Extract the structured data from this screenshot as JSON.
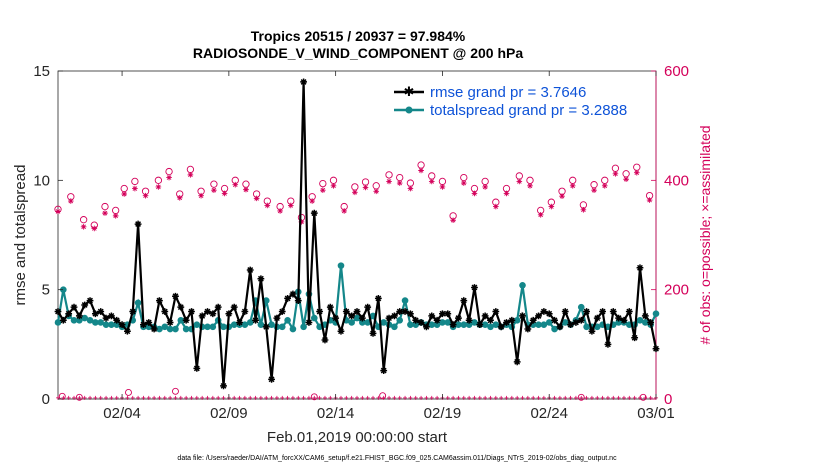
{
  "chart_data": {
    "type": "line",
    "title_line1": "Tropics 20515 / 20937 = 97.984%",
    "title_line2": "RADIOSONDE_V_WIND_COMPONENT @ 200 hPa",
    "ylabel": "rmse and totalspread",
    "y2label": "# of obs: o=possible; ×=assimilated",
    "xlabel": "Feb.01,2019 00:00:00 start",
    "footer": "data file: /Users/raeder/DAI/ATM_forcXX/CAM6_setup/f.e21.FHIST_BGC.f09_025.CAM6assim.011/Diags_NTrS_2019-02/obs_diag_output.nc",
    "xlim": [
      1,
      29
    ],
    "ylim": [
      0,
      15
    ],
    "y2lim": [
      0,
      600
    ],
    "xticks": [
      {
        "value": 4,
        "label": "02/04"
      },
      {
        "value": 9,
        "label": "02/09"
      },
      {
        "value": 14,
        "label": "02/14"
      },
      {
        "value": 19,
        "label": "02/19"
      },
      {
        "value": 24,
        "label": "02/24"
      },
      {
        "value": 29,
        "label": "03/01"
      }
    ],
    "yticks": [
      "0",
      "5",
      "10",
      "15"
    ],
    "y2ticks": [
      "0",
      "200",
      "400",
      "600"
    ],
    "legend": [
      "rmse grand pr = 3.7646",
      "totalspread grand pr = 3.2888"
    ],
    "colors": {
      "rmse": "#000000",
      "spread": "#14878a",
      "obs": "#d4005a",
      "legend_text": "#0e53d8"
    },
    "x": [
      1.0,
      1.25,
      1.5,
      1.75,
      2.0,
      2.25,
      2.5,
      2.75,
      3.0,
      3.25,
      3.5,
      3.75,
      4.0,
      4.25,
      4.5,
      4.75,
      5.0,
      5.25,
      5.5,
      5.75,
      6.0,
      6.25,
      6.5,
      6.75,
      7.0,
      7.25,
      7.5,
      7.75,
      8.0,
      8.25,
      8.5,
      8.75,
      9.0,
      9.25,
      9.5,
      9.75,
      10.0,
      10.25,
      10.5,
      10.75,
      11.0,
      11.25,
      11.5,
      11.75,
      12.0,
      12.25,
      12.5,
      12.75,
      13.0,
      13.25,
      13.5,
      13.75,
      14.0,
      14.25,
      14.5,
      14.75,
      15.0,
      15.25,
      15.5,
      15.75,
      16.0,
      16.25,
      16.5,
      16.75,
      17.0,
      17.25,
      17.5,
      17.75,
      18.0,
      18.25,
      18.5,
      18.75,
      19.0,
      19.25,
      19.5,
      19.75,
      20.0,
      20.25,
      20.5,
      20.75,
      21.0,
      21.25,
      21.5,
      21.75,
      22.0,
      22.25,
      22.5,
      22.75,
      23.0,
      23.25,
      23.5,
      23.75,
      24.0,
      24.25,
      24.5,
      24.75,
      25.0,
      25.25,
      25.5,
      25.75,
      26.0,
      26.25,
      26.5,
      26.75,
      27.0,
      27.25,
      27.5,
      27.75,
      28.0,
      28.25,
      28.5,
      28.75,
      29.0
    ],
    "series": [
      {
        "name": "rmse",
        "values": [
          4.0,
          3.6,
          3.9,
          4.2,
          3.8,
          4.3,
          4.5,
          3.9,
          4.0,
          3.7,
          3.8,
          3.6,
          3.4,
          3.1,
          4.0,
          8.0,
          3.4,
          3.5,
          3.2,
          4.5,
          4.0,
          3.5,
          4.7,
          4.2,
          3.6,
          4.0,
          1.4,
          3.8,
          4.0,
          3.9,
          4.2,
          0.6,
          3.9,
          4.2,
          3.5,
          4.0,
          5.9,
          3.6,
          5.5,
          3.3,
          0.9,
          3.7,
          4.0,
          4.6,
          4.8,
          4.5,
          14.5,
          3.5,
          8.5,
          4.0,
          2.7,
          4.2,
          3.7,
          3.1,
          4.0,
          3.8,
          4.0,
          3.7,
          4.2,
          3.0,
          4.6,
          1.3,
          3.7,
          3.8,
          4.0,
          4.0,
          3.9,
          3.6,
          3.5,
          3.3,
          3.8,
          3.6,
          3.9,
          3.9,
          3.4,
          3.7,
          4.5,
          3.6,
          5.1,
          3.4,
          3.8,
          3.6,
          4.0,
          3.3,
          3.5,
          3.6,
          1.7,
          3.8,
          3.2,
          3.6,
          3.8,
          4.0,
          3.9,
          3.6,
          3.3,
          4.0,
          3.4,
          3.5,
          3.6,
          4.0,
          3.1,
          3.7,
          4.0,
          2.5,
          4.0,
          3.7,
          3.6,
          4.0,
          2.8,
          6.0,
          3.8,
          3.5,
          2.3
        ],
        "color": "#000000"
      },
      {
        "name": "totalspread",
        "values": [
          3.5,
          5.0,
          3.8,
          3.6,
          3.6,
          3.7,
          3.6,
          3.5,
          3.5,
          3.4,
          3.4,
          3.4,
          3.3,
          3.4,
          3.6,
          4.4,
          3.3,
          3.3,
          3.3,
          3.2,
          3.3,
          3.2,
          3.2,
          3.6,
          3.2,
          3.2,
          3.4,
          3.3,
          3.3,
          3.3,
          3.6,
          3.3,
          3.3,
          3.4,
          3.4,
          3.4,
          3.5,
          4.5,
          3.4,
          4.5,
          3.4,
          3.3,
          3.3,
          3.6,
          3.2,
          4.9,
          3.3,
          4.8,
          3.7,
          3.3,
          3.4,
          3.6,
          3.5,
          6.1,
          3.6,
          3.5,
          3.7,
          3.5,
          3.5,
          3.8,
          3.3,
          3.5,
          3.4,
          3.3,
          3.6,
          4.5,
          3.4,
          3.4,
          3.5,
          3.4,
          3.4,
          3.4,
          3.5,
          3.5,
          3.3,
          3.4,
          3.4,
          3.4,
          3.5,
          3.4,
          3.4,
          3.3,
          3.4,
          3.3,
          3.4,
          3.3,
          3.6,
          5.2,
          3.4,
          3.4,
          3.4,
          3.4,
          3.5,
          3.2,
          3.3,
          3.5,
          3.4,
          3.6,
          4.2,
          3.3,
          3.3,
          3.3,
          3.4,
          3.3,
          3.4,
          3.5,
          3.5,
          3.4,
          3.4,
          3.6,
          3.5,
          3.4,
          3.9
        ],
        "color": "#14878a"
      }
    ],
    "obs_possible": [
      {
        "day": 1.0,
        "value": 347
      },
      {
        "day": 1.6,
        "value": 370
      },
      {
        "day": 2.2,
        "value": 328
      },
      {
        "day": 2.7,
        "value": 318
      },
      {
        "day": 3.2,
        "value": 352
      },
      {
        "day": 3.7,
        "value": 345
      },
      {
        "day": 4.1,
        "value": 385
      },
      {
        "day": 4.6,
        "value": 398
      },
      {
        "day": 5.1,
        "value": 380
      },
      {
        "day": 5.7,
        "value": 400
      },
      {
        "day": 6.2,
        "value": 416
      },
      {
        "day": 6.7,
        "value": 375
      },
      {
        "day": 7.2,
        "value": 420
      },
      {
        "day": 7.7,
        "value": 380
      },
      {
        "day": 8.3,
        "value": 393
      },
      {
        "day": 8.8,
        "value": 385
      },
      {
        "day": 9.3,
        "value": 400
      },
      {
        "day": 9.8,
        "value": 393
      },
      {
        "day": 10.3,
        "value": 375
      },
      {
        "day": 10.8,
        "value": 362
      },
      {
        "day": 11.4,
        "value": 352
      },
      {
        "day": 11.9,
        "value": 362
      },
      {
        "day": 12.4,
        "value": 332
      },
      {
        "day": 12.9,
        "value": 370
      },
      {
        "day": 13.4,
        "value": 394
      },
      {
        "day": 13.9,
        "value": 400
      },
      {
        "day": 14.4,
        "value": 352
      },
      {
        "day": 14.9,
        "value": 388
      },
      {
        "day": 15.4,
        "value": 397
      },
      {
        "day": 15.9,
        "value": 390
      },
      {
        "day": 16.5,
        "value": 410
      },
      {
        "day": 17.0,
        "value": 405
      },
      {
        "day": 17.5,
        "value": 395
      },
      {
        "day": 18.0,
        "value": 428
      },
      {
        "day": 18.5,
        "value": 408
      },
      {
        "day": 19.0,
        "value": 398
      },
      {
        "day": 19.5,
        "value": 335
      },
      {
        "day": 20.0,
        "value": 405
      },
      {
        "day": 20.5,
        "value": 385
      },
      {
        "day": 21.0,
        "value": 398
      },
      {
        "day": 21.5,
        "value": 360
      },
      {
        "day": 22.0,
        "value": 385
      },
      {
        "day": 22.6,
        "value": 408
      },
      {
        "day": 23.1,
        "value": 400
      },
      {
        "day": 23.6,
        "value": 345
      },
      {
        "day": 24.1,
        "value": 360
      },
      {
        "day": 24.6,
        "value": 380
      },
      {
        "day": 25.1,
        "value": 400
      },
      {
        "day": 25.6,
        "value": 355
      },
      {
        "day": 26.1,
        "value": 392
      },
      {
        "day": 26.6,
        "value": 400
      },
      {
        "day": 27.1,
        "value": 422
      },
      {
        "day": 27.6,
        "value": 412
      },
      {
        "day": 28.1,
        "value": 424
      },
      {
        "day": 28.7,
        "value": 372
      }
    ],
    "obs_assimilated": [
      {
        "day": 1.0,
        "value": 343
      },
      {
        "day": 1.6,
        "value": 362
      },
      {
        "day": 2.2,
        "value": 315
      },
      {
        "day": 2.7,
        "value": 312
      },
      {
        "day": 3.2,
        "value": 340
      },
      {
        "day": 3.7,
        "value": 335
      },
      {
        "day": 4.1,
        "value": 375
      },
      {
        "day": 4.6,
        "value": 385
      },
      {
        "day": 5.1,
        "value": 372
      },
      {
        "day": 5.7,
        "value": 388
      },
      {
        "day": 6.2,
        "value": 405
      },
      {
        "day": 6.7,
        "value": 368
      },
      {
        "day": 7.2,
        "value": 410
      },
      {
        "day": 7.7,
        "value": 372
      },
      {
        "day": 8.3,
        "value": 382
      },
      {
        "day": 8.8,
        "value": 376
      },
      {
        "day": 9.3,
        "value": 392
      },
      {
        "day": 9.8,
        "value": 383
      },
      {
        "day": 10.3,
        "value": 367
      },
      {
        "day": 10.8,
        "value": 354
      },
      {
        "day": 11.4,
        "value": 344
      },
      {
        "day": 11.9,
        "value": 354
      },
      {
        "day": 12.4,
        "value": 324
      },
      {
        "day": 12.9,
        "value": 362
      },
      {
        "day": 13.4,
        "value": 382
      },
      {
        "day": 13.9,
        "value": 390
      },
      {
        "day": 14.4,
        "value": 344
      },
      {
        "day": 14.9,
        "value": 378
      },
      {
        "day": 15.4,
        "value": 387
      },
      {
        "day": 15.9,
        "value": 380
      },
      {
        "day": 16.5,
        "value": 398
      },
      {
        "day": 17.0,
        "value": 395
      },
      {
        "day": 17.5,
        "value": 385
      },
      {
        "day": 18.0,
        "value": 418
      },
      {
        "day": 18.5,
        "value": 398
      },
      {
        "day": 19.0,
        "value": 388
      },
      {
        "day": 19.5,
        "value": 327
      },
      {
        "day": 20.0,
        "value": 395
      },
      {
        "day": 20.5,
        "value": 376
      },
      {
        "day": 21.0,
        "value": 388
      },
      {
        "day": 21.5,
        "value": 352
      },
      {
        "day": 22.0,
        "value": 376
      },
      {
        "day": 22.6,
        "value": 398
      },
      {
        "day": 23.1,
        "value": 390
      },
      {
        "day": 23.6,
        "value": 337
      },
      {
        "day": 24.1,
        "value": 352
      },
      {
        "day": 24.6,
        "value": 371
      },
      {
        "day": 25.1,
        "value": 390
      },
      {
        "day": 25.6,
        "value": 346
      },
      {
        "day": 26.1,
        "value": 382
      },
      {
        "day": 26.6,
        "value": 390
      },
      {
        "day": 27.1,
        "value": 412
      },
      {
        "day": 27.6,
        "value": 402
      },
      {
        "day": 28.1,
        "value": 414
      },
      {
        "day": 28.7,
        "value": 364
      }
    ],
    "obs_low_possible": [
      {
        "day": 1.2,
        "value": 5
      },
      {
        "day": 2.0,
        "value": 3
      },
      {
        "day": 4.3,
        "value": 12
      },
      {
        "day": 6.5,
        "value": 14
      },
      {
        "day": 13.0,
        "value": 4
      },
      {
        "day": 16.2,
        "value": 6
      },
      {
        "day": 25.5,
        "value": 3
      },
      {
        "day": 28.4,
        "value": 3
      }
    ]
  }
}
